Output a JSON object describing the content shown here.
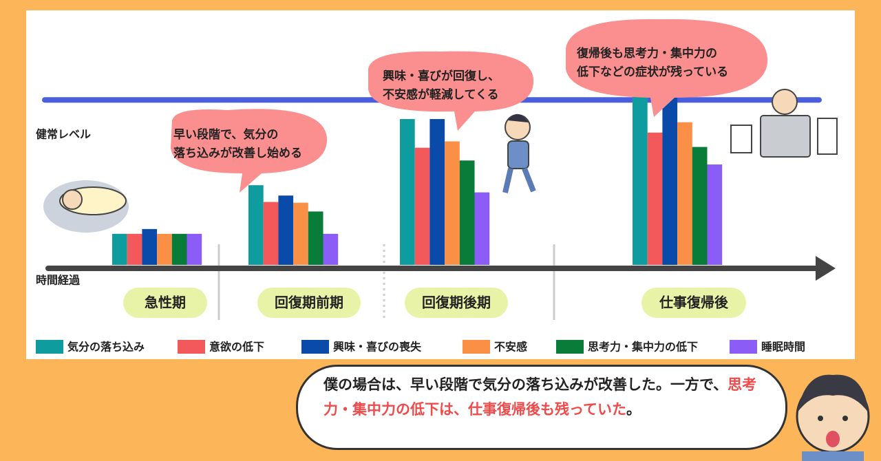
{
  "chart_data": {
    "type": "bar",
    "health_label": "健常レベル",
    "time_label": "時間経過",
    "categories": [
      "急性期",
      "回復期前期",
      "回復期後期",
      "仕事復帰後"
    ],
    "series": [
      {
        "name": "気分の落ち込み",
        "color": "#0e9c9e",
        "values": [
          39,
          100,
          183,
          224
        ]
      },
      {
        "name": "意欲の低下",
        "color": "#f3595a",
        "values": [
          39,
          79,
          147,
          166
        ]
      },
      {
        "name": "興味・喜びの喪失",
        "color": "#0a4aa8",
        "values": [
          45,
          87,
          183,
          230
        ]
      },
      {
        "name": "不安感",
        "color": "#f99045",
        "values": [
          39,
          78,
          155,
          179
        ]
      },
      {
        "name": "思考力・集中力の低下",
        "color": "#0a7c3a",
        "values": [
          39,
          67,
          131,
          148
        ]
      },
      {
        "name": "睡眠時間",
        "color": "#8b5cf6",
        "values": [
          39,
          39,
          91,
          126
        ]
      }
    ],
    "health_level": 207,
    "ylim": [
      0,
      240
    ],
    "callouts": [
      [
        "早い段階で、気分の",
        "落ち込みが改善し始める"
      ],
      [
        "興味・喜びが回復し、",
        "不安感が軽減してくる"
      ],
      [
        "復帰後も思考力・集中力の",
        "低下などの症状が残っている"
      ]
    ]
  },
  "note": [
    {
      "text": "僕の場合は、早い段階で気分の落ち込みが改善した。一方で、",
      "highlight": false
    },
    {
      "text": "思考力・集中力の低下は、仕事復帰後も残っていた",
      "highlight": true
    },
    {
      "text": "。",
      "highlight": false
    }
  ]
}
